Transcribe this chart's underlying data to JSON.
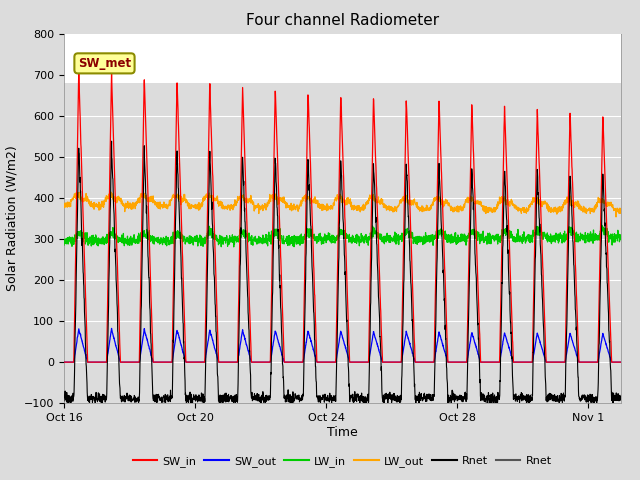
{
  "title": "Four channel Radiometer",
  "xlabel": "Time",
  "ylabel": "Solar Radiation (W/m2)",
  "ylim": [
    -100,
    800
  ],
  "yticks": [
    -100,
    0,
    100,
    200,
    300,
    400,
    500,
    600,
    700,
    800
  ],
  "xtick_labels": [
    "Oct 16",
    "Oct 20",
    "Oct 24",
    "Oct 28",
    "Nov 1"
  ],
  "annotation_text": "SW_met",
  "annotation_color": "#8B0000",
  "annotation_bg": "#FFFF99",
  "annotation_border": "#8B8B00",
  "colors": {
    "SW_in": "#FF0000",
    "SW_out": "#0000FF",
    "LW_in": "#00CC00",
    "LW_out": "#FFA500",
    "Rnet_black": "#000000",
    "Rnet_dark": "#555555"
  },
  "legend_labels": [
    "SW_in",
    "SW_out",
    "LW_in",
    "LW_out",
    "Rnet",
    "Rnet"
  ],
  "n_days": 17,
  "plot_bg_upper": "#FFFFFF",
  "plot_bg_lower": "#DCDCDC",
  "grid_color": "#FFFFFF",
  "fig_bg": "#DCDCDC",
  "title_fontsize": 11,
  "axis_label_fontsize": 9,
  "tick_fontsize": 8,
  "figsize": [
    6.4,
    4.8
  ],
  "dpi": 100
}
